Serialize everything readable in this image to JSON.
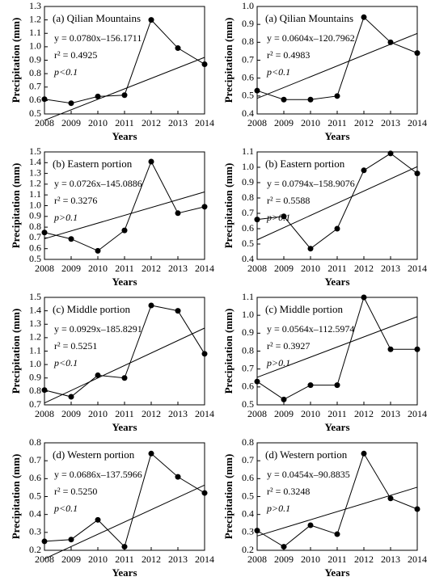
{
  "chart_data": [
    {
      "type": "line",
      "title": "(a) Qilian Mountains",
      "annotations": [
        "y = 0.0780x–156.1711",
        "r² = 0.4925",
        "p<0.1"
      ],
      "xlabel": "Years",
      "ylabel": "Precipitation (mm)",
      "x": [
        2008,
        2009,
        2010,
        2011,
        2012,
        2013,
        2014
      ],
      "series": [
        {
          "color": "#000000",
          "values": [
            0.61,
            0.58,
            0.63,
            0.64,
            1.2,
            0.99,
            0.87
          ]
        }
      ],
      "trend": {
        "slope": 0.078,
        "intercept": -156.1711
      },
      "xlim": [
        2008,
        2014
      ],
      "xticks": [
        2008,
        2009,
        2010,
        2011,
        2012,
        2013,
        2014
      ],
      "ylim": [
        0.5,
        1.3
      ],
      "yticks": [
        0.5,
        0.6,
        0.7,
        0.8,
        0.9,
        {
          "value": 1,
          "label": "1.0"
        },
        1.1,
        1.2,
        1.3
      ]
    },
    {
      "type": "line",
      "title": "(a) Qilian Mountains",
      "annotations": [
        "y = 0.0604x–120.7962",
        "r² = 0.4983",
        "p<0.1"
      ],
      "xlabel": "Years",
      "ylabel": "Precipitation (mm)",
      "x": [
        2008,
        2009,
        2010,
        2011,
        2012,
        2013,
        2014
      ],
      "series": [
        {
          "color": "#000000",
          "values": [
            0.53,
            0.48,
            0.48,
            0.5,
            0.94,
            0.8,
            0.74
          ]
        }
      ],
      "trend": {
        "slope": 0.0604,
        "intercept": -120.7962
      },
      "xlim": [
        2008,
        2014
      ],
      "xticks": [
        2008,
        2009,
        2010,
        2011,
        2012,
        2013,
        2014
      ],
      "ylim": [
        0.4,
        1
      ],
      "yticks": [
        0.4,
        0.5,
        0.6,
        0.7,
        0.8,
        0.9,
        {
          "value": 1,
          "label": "1.0"
        }
      ]
    },
    {
      "type": "line",
      "title": "(b) Eastern portion",
      "annotations": [
        "y = 0.0726x–145.0886",
        "r² = 0.3276",
        "p>0.1"
      ],
      "xlabel": "Years",
      "ylabel": "Precipitation (mm)",
      "x": [
        2008,
        2009,
        2010,
        2011,
        2012,
        2013,
        2014
      ],
      "series": [
        {
          "color": "#000000",
          "values": [
            0.75,
            0.69,
            0.58,
            0.77,
            1.41,
            0.93,
            0.99
          ]
        }
      ],
      "trend": {
        "slope": 0.0726,
        "intercept": -145.0886
      },
      "xlim": [
        2008,
        2014
      ],
      "xticks": [
        2008,
        2009,
        2010,
        2011,
        2012,
        2013,
        2014
      ],
      "ylim": [
        0.5,
        1.5
      ],
      "yticks": [
        0.5,
        0.6,
        0.7,
        0.8,
        0.9,
        {
          "value": 1,
          "label": "1.0"
        },
        1.1,
        1.2,
        1.3,
        1.4,
        1.5
      ]
    },
    {
      "type": "line",
      "title": "(b) Eastern portion",
      "annotations": [
        "y = 0.0794x–158.9076",
        "r² = 0.5588",
        "p>0.1"
      ],
      "xlabel": "Years",
      "ylabel": "Precipitation (mm)",
      "x": [
        2008,
        2009,
        2010,
        2011,
        2012,
        2013,
        2014
      ],
      "series": [
        {
          "color": "#000000",
          "values": [
            0.66,
            0.68,
            0.47,
            0.6,
            0.98,
            1.09,
            0.96
          ]
        }
      ],
      "trend": {
        "slope": 0.0794,
        "intercept": -158.9076
      },
      "xlim": [
        2008,
        2014
      ],
      "xticks": [
        2008,
        2009,
        2010,
        2011,
        2012,
        2013,
        2014
      ],
      "ylim": [
        0.4,
        1.1
      ],
      "yticks": [
        0.4,
        0.5,
        0.6,
        0.7,
        0.8,
        0.9,
        {
          "value": 1,
          "label": "1.0"
        },
        1.1
      ]
    },
    {
      "type": "line",
      "title": "(c) Middle portion",
      "annotations": [
        "y = 0.0929x–185.8291",
        "r² = 0.5251",
        "p<0.1"
      ],
      "xlabel": "Years",
      "ylabel": "Precipitation (mm)",
      "x": [
        2008,
        2009,
        2010,
        2011,
        2012,
        2013,
        2014
      ],
      "series": [
        {
          "color": "#000000",
          "values": [
            0.81,
            0.76,
            0.92,
            0.9,
            1.44,
            1.4,
            1.08
          ]
        }
      ],
      "trend": {
        "slope": 0.0929,
        "intercept": -185.8291
      },
      "xlim": [
        2008,
        2014
      ],
      "xticks": [
        2008,
        2009,
        2010,
        2011,
        2012,
        2013,
        2014
      ],
      "ylim": [
        0.7,
        1.5
      ],
      "yticks": [
        0.7,
        0.8,
        0.9,
        {
          "value": 1,
          "label": "1.0"
        },
        1.1,
        1.2,
        1.3,
        1.4,
        1.5
      ]
    },
    {
      "type": "line",
      "title": "(c) Middle portion",
      "annotations": [
        "y = 0.0564x–112.5974",
        "r² = 0.3927",
        "p>0.1"
      ],
      "xlabel": "Years",
      "ylabel": "Precipitation (mm)",
      "x": [
        2008,
        2009,
        2010,
        2011,
        2012,
        2013,
        2014
      ],
      "series": [
        {
          "color": "#000000",
          "values": [
            0.63,
            0.53,
            0.61,
            0.61,
            1.1,
            0.81,
            0.81
          ]
        }
      ],
      "trend": {
        "slope": 0.0564,
        "intercept": -112.5974
      },
      "xlim": [
        2008,
        2014
      ],
      "xticks": [
        2008,
        2009,
        2010,
        2011,
        2012,
        2013,
        2014
      ],
      "ylim": [
        0.5,
        1.1
      ],
      "yticks": [
        0.5,
        0.6,
        0.7,
        0.8,
        0.9,
        {
          "value": 1,
          "label": "1.0"
        },
        1.1
      ]
    },
    {
      "type": "line",
      "title": "(d) Western portion",
      "annotations": [
        "y = 0.0686x–137.5966",
        "r² = 0.5250",
        "p<0.1"
      ],
      "xlabel": "Years",
      "ylabel": "Precipitation (mm)",
      "x": [
        2008,
        2009,
        2010,
        2011,
        2012,
        2013,
        2014
      ],
      "series": [
        {
          "color": "#000000",
          "values": [
            0.25,
            0.26,
            0.37,
            0.22,
            0.74,
            0.61,
            0.52
          ]
        }
      ],
      "trend": {
        "slope": 0.0686,
        "intercept": -137.5966
      },
      "xlim": [
        2008,
        2014
      ],
      "xticks": [
        2008,
        2009,
        2010,
        2011,
        2012,
        2013,
        2014
      ],
      "ylim": [
        0.2,
        0.8
      ],
      "yticks": [
        0.2,
        0.3,
        0.4,
        0.5,
        0.6,
        0.7,
        0.8
      ]
    },
    {
      "type": "line",
      "title": "(d) Western portion",
      "annotations": [
        "y = 0.0454x–90.8835",
        "r² = 0.3248",
        "p>0.1"
      ],
      "xlabel": "Years",
      "ylabel": "Precipitation (mm)",
      "x": [
        2008,
        2009,
        2010,
        2011,
        2012,
        2013,
        2014
      ],
      "series": [
        {
          "color": "#000000",
          "values": [
            0.31,
            0.22,
            0.34,
            0.29,
            0.74,
            0.49,
            0.43
          ]
        }
      ],
      "trend": {
        "slope": 0.0454,
        "intercept": -90.8835
      },
      "xlim": [
        2008,
        2014
      ],
      "xticks": [
        2008,
        2009,
        2010,
        2011,
        2012,
        2013,
        2014
      ],
      "ylim": [
        0.2,
        0.8
      ],
      "yticks": [
        0.2,
        0.3,
        0.4,
        0.5,
        0.6,
        0.7,
        0.8
      ]
    }
  ]
}
